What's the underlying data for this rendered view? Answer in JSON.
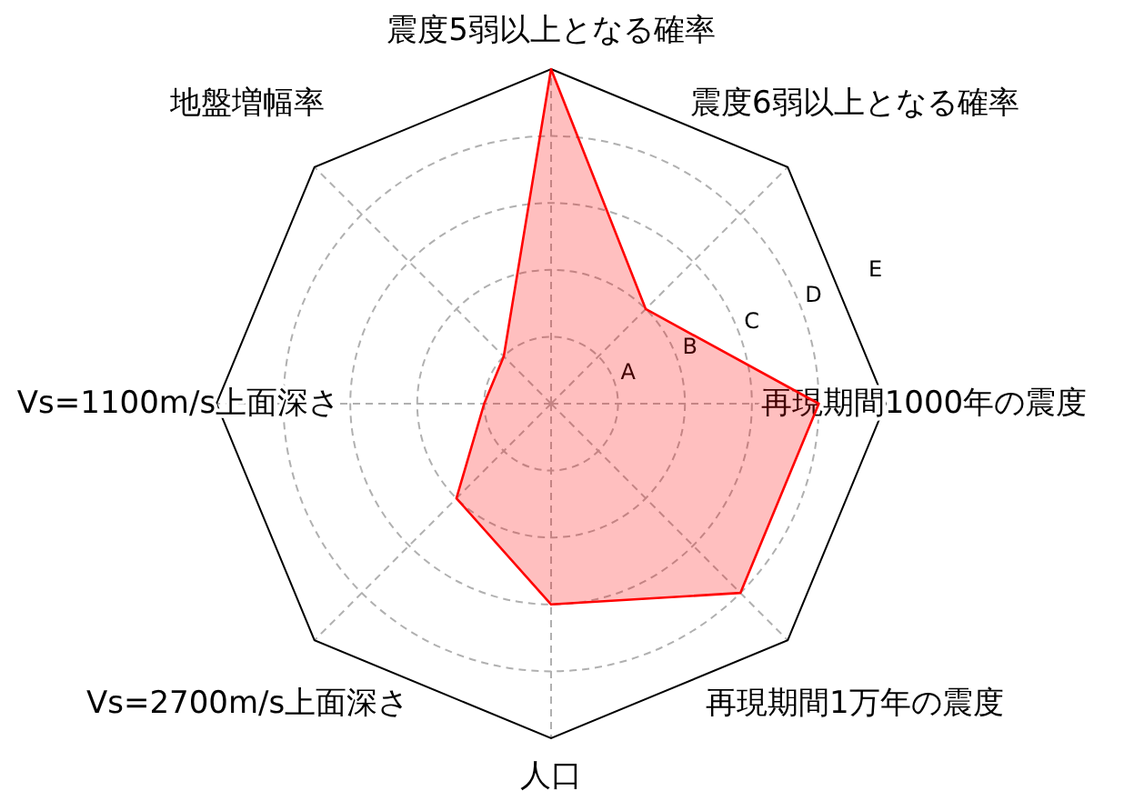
{
  "chart_data": {
    "type": "radar",
    "categories": [
      "震度5弱以上となる確率",
      "震度6弱以上となる確率",
      "再現期間1000年の震度",
      "再現期間1万年の震度",
      "人口",
      "Vs=2700m/s上面深さ",
      "Vs=1100m/s上面深さ",
      "地盤増幅率"
    ],
    "series": [
      {
        "color": "#ff0000",
        "values": [
          5,
          2,
          4,
          4,
          3,
          2,
          1,
          1
        ]
      }
    ],
    "ylim": [
      0,
      5
    ],
    "yticks": [
      {
        "value": 1,
        "label": "A"
      },
      {
        "value": 2,
        "label": "B"
      },
      {
        "value": 3,
        "label": "C"
      },
      {
        "value": 4,
        "label": "D"
      },
      {
        "value": 5,
        "label": "E"
      }
    ],
    "grid": true
  }
}
